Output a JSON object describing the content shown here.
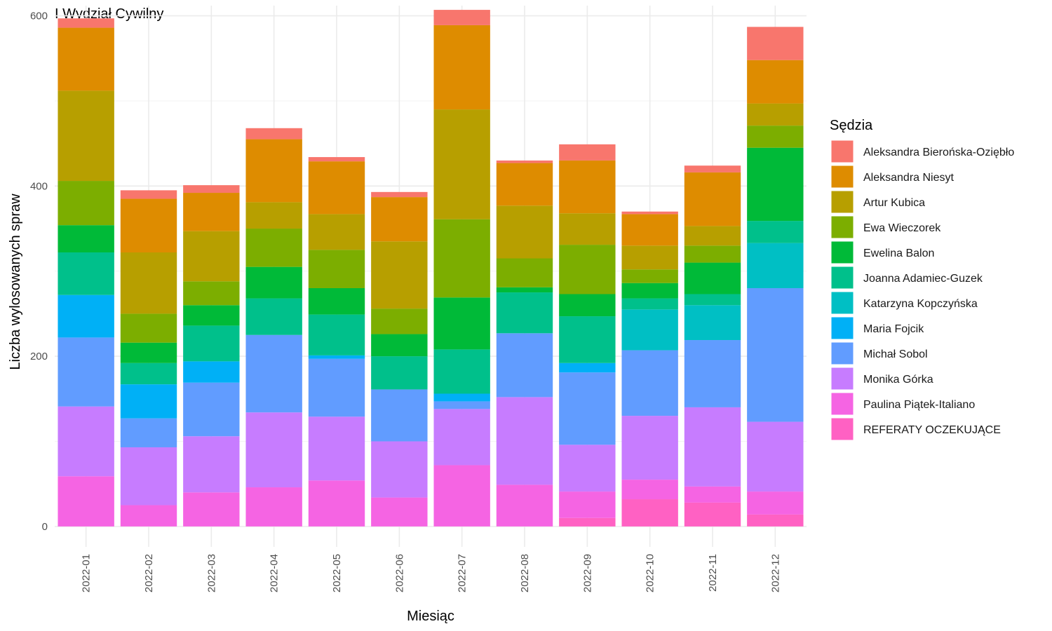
{
  "chart_data": {
    "type": "bar",
    "stacked": true,
    "title": "I Wydział Cywilny",
    "xlabel": "Miesiąc",
    "ylabel": "Liczba wylosowanych spraw",
    "ylim": [
      -24,
      612
    ],
    "yticks": [
      0,
      200,
      400,
      600
    ],
    "grid": true,
    "legend": {
      "title": "Sędzia",
      "position": "right"
    },
    "categories": [
      "2022-01",
      "2022-02",
      "2022-03",
      "2022-04",
      "2022-05",
      "2022-06",
      "2022-07",
      "2022-08",
      "2022-09",
      "2022-10",
      "2022-11",
      "2022-12"
    ],
    "series": [
      {
        "name": "REFERATY OCZEKUJĄCE",
        "color": "#FF61C3",
        "values": [
          0,
          0,
          0,
          0,
          0,
          0,
          0,
          0,
          10,
          32,
          28,
          14
        ]
      },
      {
        "name": "Paulina Piątek-Italiano",
        "color": "#F564E3",
        "values": [
          59,
          25,
          40,
          46,
          54,
          34,
          72,
          49,
          31,
          23,
          19,
          27
        ]
      },
      {
        "name": "Monika Górka",
        "color": "#C77CFF",
        "values": [
          82,
          68,
          66,
          88,
          75,
          66,
          66,
          103,
          55,
          75,
          93,
          82
        ]
      },
      {
        "name": "Michał Sobol",
        "color": "#619CFF",
        "values": [
          81,
          34,
          63,
          91,
          68,
          61,
          9,
          75,
          85,
          77,
          79,
          157
        ]
      },
      {
        "name": "Maria Fojcik",
        "color": "#00B0F6",
        "values": [
          50,
          40,
          25,
          0,
          4,
          0,
          9,
          0,
          11,
          0,
          0,
          0
        ]
      },
      {
        "name": "Katarzyna Kopczyńska",
        "color": "#00BFC4",
        "values": [
          0,
          0,
          0,
          0,
          0,
          0,
          0,
          0,
          0,
          48,
          41,
          53
        ]
      },
      {
        "name": "Joanna Adamiec-Guzek",
        "color": "#00C08B",
        "values": [
          50,
          25,
          42,
          43,
          48,
          39,
          52,
          48,
          55,
          13,
          13,
          26
        ]
      },
      {
        "name": "Ewelina Balon",
        "color": "#00BA38",
        "values": [
          32,
          24,
          24,
          37,
          31,
          26,
          61,
          6,
          26,
          18,
          37,
          86
        ]
      },
      {
        "name": "Ewa Wieczorek",
        "color": "#7CAE00",
        "values": [
          52,
          34,
          28,
          45,
          45,
          30,
          92,
          34,
          58,
          16,
          20,
          26
        ]
      },
      {
        "name": "Artur Kubica",
        "color": "#B79F00",
        "values": [
          106,
          72,
          59,
          31,
          42,
          79,
          129,
          62,
          37,
          28,
          23,
          26
        ]
      },
      {
        "name": "Aleksandra Niesyt",
        "color": "#DE8C00",
        "values": [
          74,
          63,
          45,
          74,
          62,
          52,
          99,
          50,
          62,
          37,
          63,
          51
        ]
      },
      {
        "name": "Aleksandra Bierońska-Oziębło",
        "color": "#F8766D",
        "values": [
          11,
          10,
          9,
          13,
          5,
          6,
          18,
          3,
          19,
          3,
          8,
          39
        ]
      }
    ],
    "legend_order": [
      "Aleksandra Bierońska-Oziębło",
      "Aleksandra Niesyt",
      "Artur Kubica",
      "Ewa Wieczorek",
      "Ewelina Balon",
      "Joanna Adamiec-Guzek",
      "Katarzyna Kopczyńska",
      "Maria Fojcik",
      "Michał Sobol",
      "Monika Górka",
      "Paulina Piątek-Italiano",
      "REFERATY OCZEKUJĄCE"
    ]
  }
}
